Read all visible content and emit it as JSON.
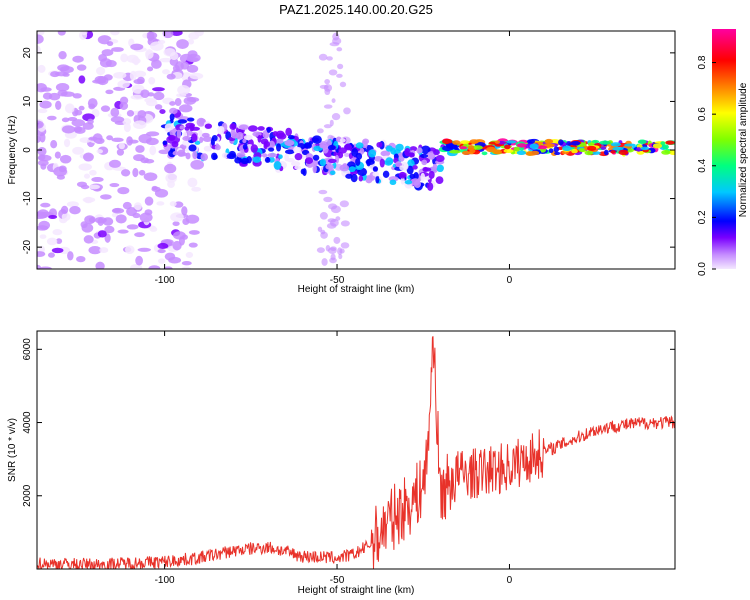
{
  "title": "PAZ1.2025.140.00.20.G25",
  "colors": {
    "snr_line": "#e8322a",
    "colormap": [
      "#f4e8ff",
      "#c58cff",
      "#7a00ff",
      "#0000ff",
      "#00c8ff",
      "#00ff80",
      "#80ff00",
      "#ffff00",
      "#ff8000",
      "#ff0000",
      "#ff00a0"
    ]
  },
  "chart_data": [
    {
      "type": "heatmap",
      "xlabel": "Height of straight line (km)",
      "ylabel": "Frequency (Hz)",
      "xlim": [
        -137,
        48
      ],
      "ylim": [
        -24.5,
        24.5
      ],
      "xticks": [
        -100,
        -50,
        0
      ],
      "yticks": [
        -20,
        -10,
        0,
        10,
        20
      ],
      "grid": false,
      "colorbar": {
        "label": "Normalized spectral amplitude",
        "range": [
          0,
          0.93
        ],
        "ticks": [
          "0.0",
          "0.2",
          "0.4",
          "0.6",
          "0.8"
        ]
      },
      "features": [
        {
          "x_range": [
            -137,
            -100
          ],
          "freq_range": [
            -24.5,
            24.5
          ],
          "amplitude": 0.1,
          "pattern": "scattered noise"
        },
        {
          "x_range": [
            -100,
            -20
          ],
          "freq_center_start": 3,
          "freq_center_end": -4,
          "amplitude": 0.25,
          "pattern": "dispersive signal band"
        },
        {
          "x_range": [
            -20,
            48
          ],
          "freq_center": 0.5,
          "amplitude": 0.7,
          "pattern": "narrow strong band"
        }
      ]
    },
    {
      "type": "line",
      "xlabel": "Height of straight line (km)",
      "ylabel": "SNR (10 * v/v)",
      "xlim": [
        -137,
        48
      ],
      "ylim": [
        0,
        6500
      ],
      "xticks": [
        -100,
        -50,
        0
      ],
      "yticks": [
        2000,
        4000,
        6000
      ],
      "grid": false,
      "series": [
        {
          "x": [
            -137,
            -120,
            -100,
            -90,
            -80,
            -70,
            -60,
            -50,
            -45,
            -40,
            -35,
            -30,
            -26,
            -24,
            -22,
            -21,
            -20,
            -18,
            -15,
            -10,
            -5,
            0,
            5,
            10,
            15,
            20,
            25,
            30,
            35,
            40,
            48
          ],
          "y": [
            150,
            120,
            200,
            300,
            500,
            600,
            350,
            300,
            400,
            700,
            1300,
            1700,
            2100,
            2800,
            6400,
            4000,
            2000,
            2300,
            2600,
            2600,
            2700,
            2800,
            3000,
            3200,
            3400,
            3600,
            3800,
            3900,
            3950,
            4000,
            4000
          ]
        }
      ]
    }
  ]
}
